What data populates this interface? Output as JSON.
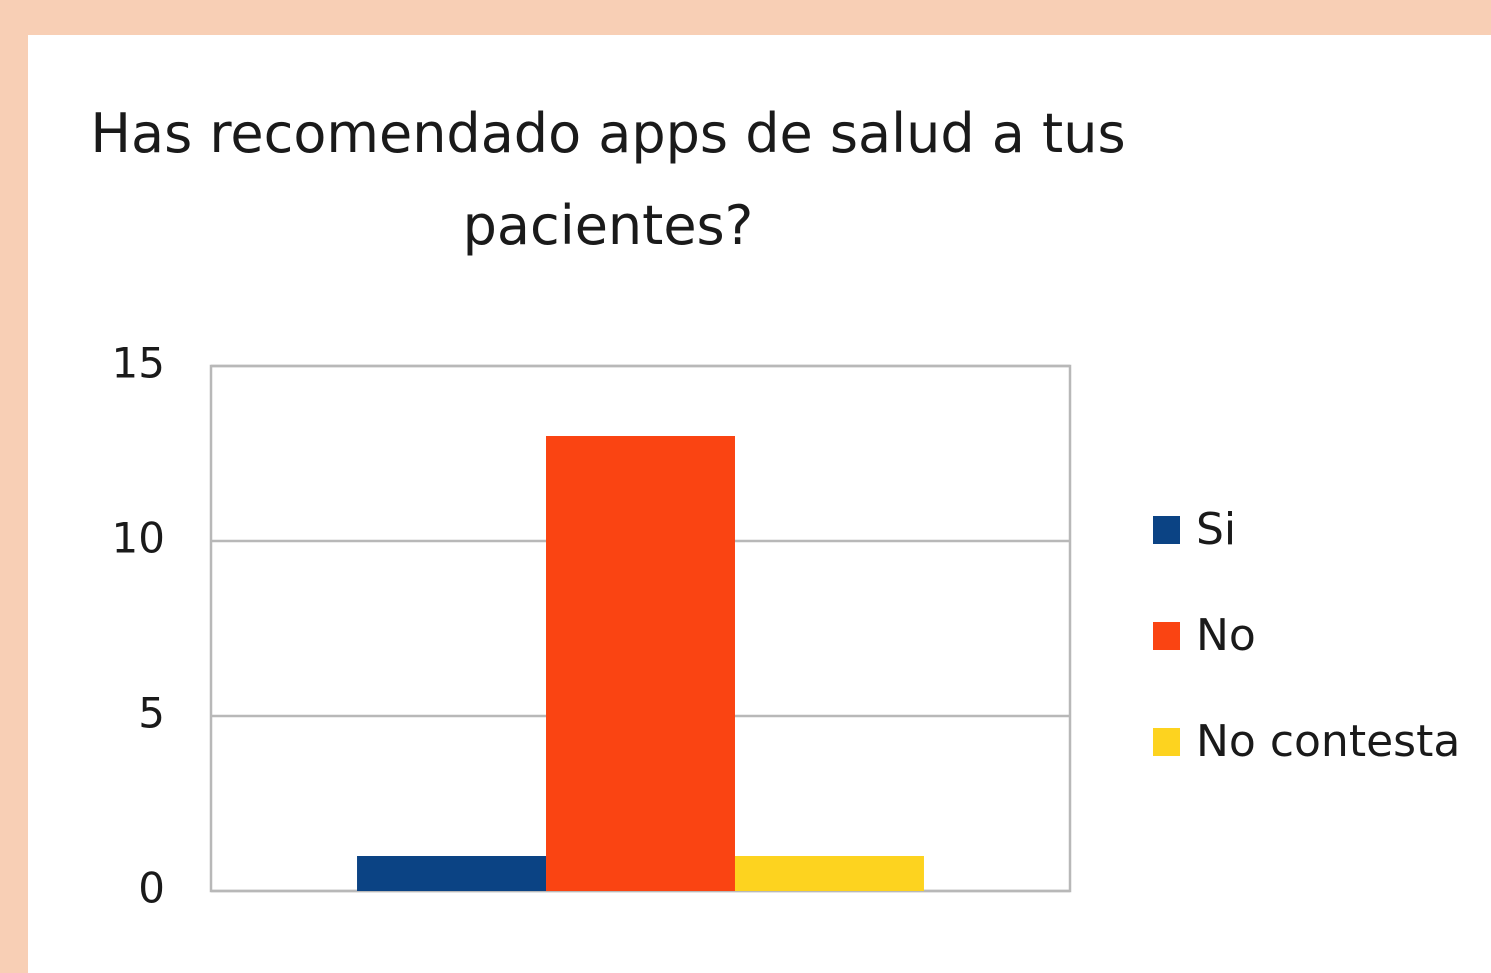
{
  "chart_data": {
    "type": "bar",
    "title": "Has recomendado apps de salud a tus pacientes?",
    "categories": [
      null
    ],
    "series": [
      {
        "name": "Si",
        "color": "#0b4384",
        "values": [
          1
        ]
      },
      {
        "name": "No",
        "color": "#fa4412",
        "values": [
          13
        ]
      },
      {
        "name": "No contesta",
        "color": "#fdd31f",
        "values": [
          1
        ]
      }
    ],
    "ylim": [
      0,
      15
    ],
    "yticks": [
      0,
      5,
      10,
      15
    ],
    "grid": true,
    "legend": "right"
  }
}
